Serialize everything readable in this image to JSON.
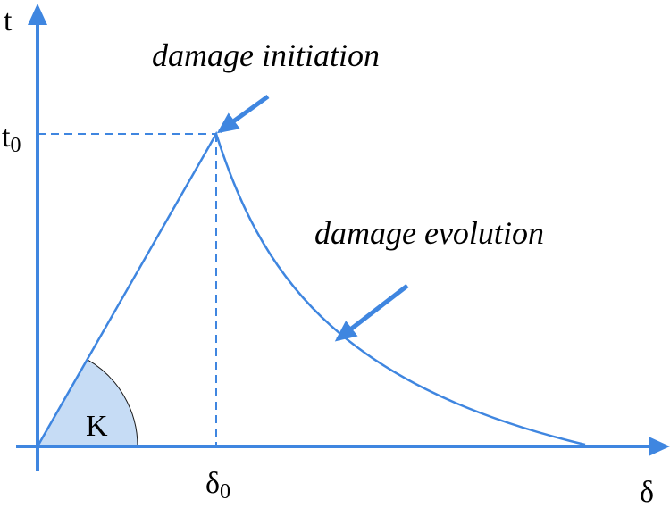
{
  "axes": {
    "y_label": "t",
    "x_label": "δ"
  },
  "peak_labels": {
    "t0": {
      "base": "t",
      "sub": "0"
    },
    "delta0": {
      "base": "δ",
      "sub": "0"
    }
  },
  "stiffness_label": "K",
  "annotations": {
    "initiation": "damage initiation",
    "evolution": "damage evolution"
  }
}
